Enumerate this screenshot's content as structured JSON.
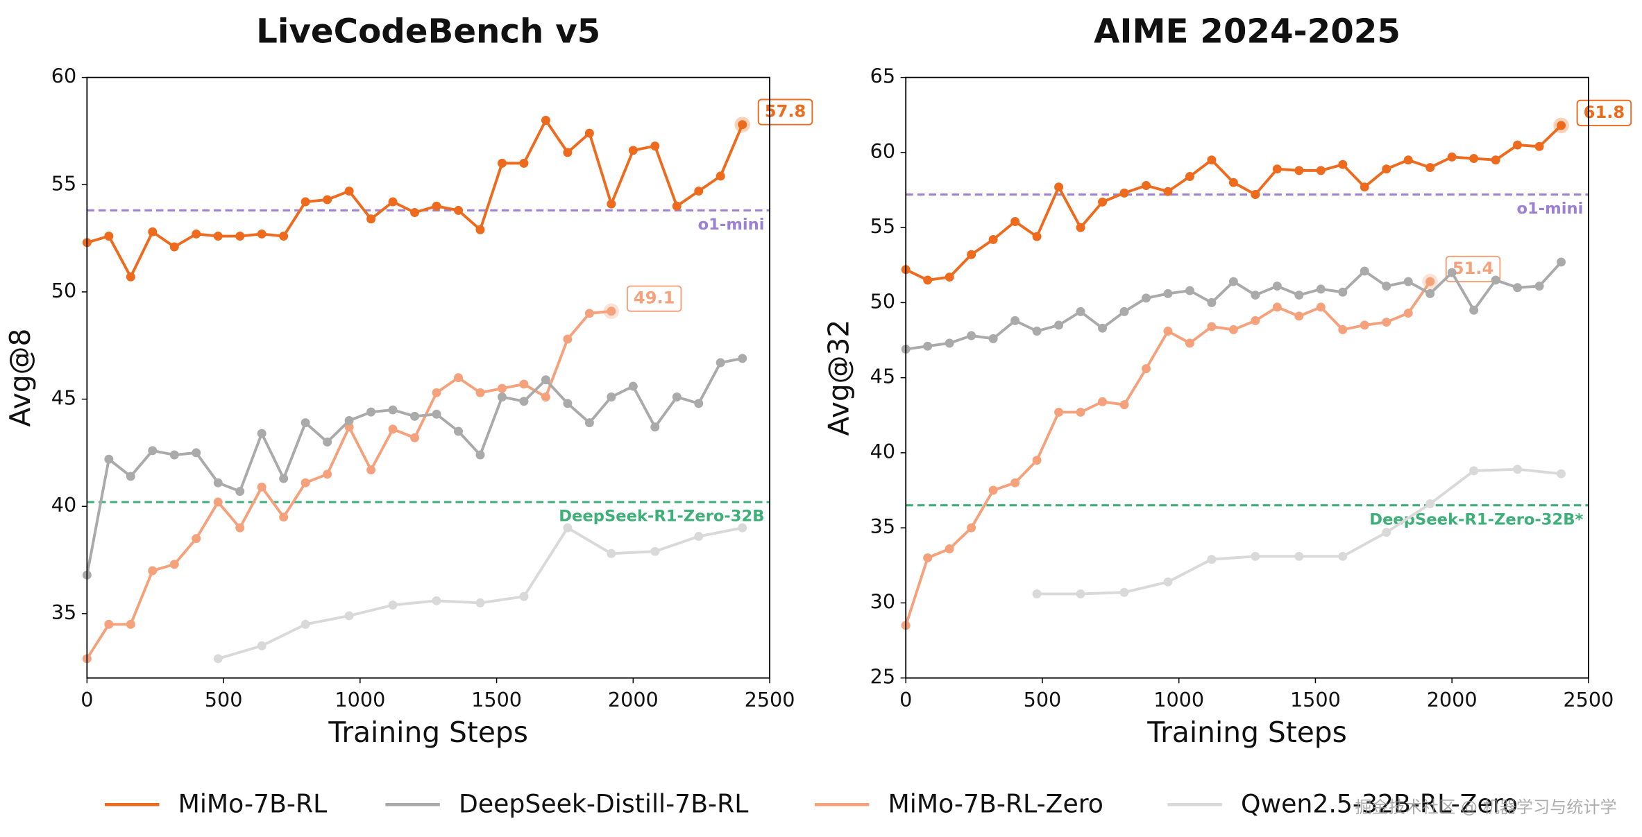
{
  "chart_data": [
    {
      "type": "line",
      "title": "LiveCodeBench v5",
      "xlabel": "Training Steps",
      "ylabel": "Avg@8",
      "xlim": [
        0,
        2500
      ],
      "xticks": [
        0,
        500,
        1000,
        1500,
        2000,
        2500
      ],
      "ylim": [
        32,
        60
      ],
      "yticks": [
        35,
        40,
        45,
        50,
        55,
        60
      ],
      "grid": false,
      "legend": "bottom",
      "series": [
        {
          "name": "MiMo-7B-RL",
          "color": "#ee6a1c",
          "end_label": true,
          "x": [
            0,
            80,
            160,
            240,
            320,
            400,
            480,
            560,
            640,
            720,
            800,
            880,
            960,
            1040,
            1120,
            1200,
            1280,
            1360,
            1440,
            1520,
            1600,
            1680,
            1760,
            1840,
            1920,
            2000,
            2080,
            2160,
            2240,
            2320,
            2400
          ],
          "values": [
            52.3,
            52.6,
            50.7,
            52.8,
            52.1,
            52.7,
            52.6,
            52.6,
            52.7,
            52.6,
            54.2,
            54.3,
            54.7,
            53.4,
            54.2,
            53.7,
            54.0,
            53.8,
            52.9,
            56.0,
            56.0,
            58.0,
            56.5,
            57.4,
            54.1,
            56.6,
            56.8,
            54.0,
            54.7,
            55.4,
            57.8
          ]
        },
        {
          "name": "DeepSeek-Distill-7B-RL",
          "color": "#aaaaaa",
          "x": [
            0,
            80,
            160,
            240,
            320,
            400,
            480,
            560,
            640,
            720,
            800,
            880,
            960,
            1040,
            1120,
            1200,
            1280,
            1360,
            1440,
            1520,
            1600,
            1680,
            1760,
            1840,
            1920,
            2000,
            2080,
            2160,
            2240,
            2320,
            2400
          ],
          "values": [
            36.8,
            42.2,
            41.4,
            42.6,
            42.4,
            42.5,
            41.1,
            40.7,
            43.4,
            41.3,
            43.9,
            43.0,
            44.0,
            44.4,
            44.5,
            44.2,
            44.3,
            43.5,
            42.4,
            45.1,
            44.9,
            45.9,
            44.8,
            43.9,
            45.1,
            45.6,
            43.7,
            45.1,
            44.8,
            46.7,
            46.9
          ]
        },
        {
          "name": "MiMo-7B-RL-Zero",
          "color": "#f5a27c",
          "end_label": true,
          "x": [
            0,
            80,
            160,
            240,
            320,
            400,
            480,
            560,
            640,
            720,
            800,
            880,
            960,
            1040,
            1120,
            1200,
            1280,
            1360,
            1440,
            1520,
            1600,
            1680,
            1760,
            1840,
            1920
          ],
          "values": [
            32.9,
            34.5,
            34.5,
            37.0,
            37.3,
            38.5,
            40.2,
            39.0,
            40.9,
            39.5,
            41.1,
            41.5,
            43.7,
            41.7,
            43.6,
            43.2,
            45.3,
            46.0,
            45.3,
            45.5,
            45.7,
            45.1,
            47.8,
            49.0,
            49.1
          ]
        },
        {
          "name": "Qwen2.5-32B-RL-Zero",
          "color": "#d9d9d9",
          "x": [
            480,
            640,
            800,
            960,
            1120,
            1280,
            1440,
            1600,
            1760,
            1920,
            2080,
            2240,
            2400
          ],
          "values": [
            32.9,
            33.5,
            34.5,
            34.9,
            35.4,
            35.6,
            35.5,
            35.8,
            39.0,
            37.8,
            37.9,
            38.6,
            39.0
          ]
        }
      ],
      "reference_lines": [
        {
          "label": "o1-mini",
          "value": 53.8,
          "color": "#9b80d6"
        },
        {
          "label": "DeepSeek-R1-Zero-32B",
          "value": 40.2,
          "color": "#3daf78"
        }
      ]
    },
    {
      "type": "line",
      "title": "AIME 2024-2025",
      "xlabel": "Training Steps",
      "ylabel": "Avg@32",
      "xlim": [
        0,
        2500
      ],
      "xticks": [
        0,
        500,
        1000,
        1500,
        2000,
        2500
      ],
      "ylim": [
        25,
        65
      ],
      "yticks": [
        25,
        30,
        35,
        40,
        45,
        50,
        55,
        60,
        65
      ],
      "grid": false,
      "series": [
        {
          "name": "MiMo-7B-RL",
          "color": "#ee6a1c",
          "end_label": true,
          "x": [
            0,
            80,
            160,
            240,
            320,
            400,
            480,
            560,
            640,
            720,
            800,
            880,
            960,
            1040,
            1120,
            1200,
            1280,
            1360,
            1440,
            1520,
            1600,
            1680,
            1760,
            1840,
            1920,
            2000,
            2080,
            2160,
            2240,
            2320,
            2400
          ],
          "values": [
            52.2,
            51.5,
            51.7,
            53.2,
            54.2,
            55.4,
            54.4,
            57.7,
            55.0,
            56.7,
            57.3,
            57.8,
            57.4,
            58.4,
            59.5,
            58.0,
            57.2,
            58.9,
            58.8,
            58.8,
            59.2,
            57.7,
            58.9,
            59.5,
            59.0,
            59.7,
            59.6,
            59.5,
            60.5,
            60.4,
            61.8
          ]
        },
        {
          "name": "DeepSeek-Distill-7B-RL",
          "color": "#aaaaaa",
          "x": [
            0,
            80,
            160,
            240,
            320,
            400,
            480,
            560,
            640,
            720,
            800,
            880,
            960,
            1040,
            1120,
            1200,
            1280,
            1360,
            1440,
            1520,
            1600,
            1680,
            1760,
            1840,
            1920,
            2000,
            2080,
            2160,
            2240,
            2320,
            2400
          ],
          "values": [
            46.9,
            47.1,
            47.3,
            47.8,
            47.6,
            48.8,
            48.1,
            48.5,
            49.4,
            48.3,
            49.4,
            50.3,
            50.6,
            50.8,
            50.0,
            51.4,
            50.5,
            51.1,
            50.5,
            50.9,
            50.7,
            52.1,
            51.1,
            51.4,
            50.6,
            52.0,
            49.5,
            51.5,
            51.0,
            51.1,
            52.7
          ]
        },
        {
          "name": "MiMo-7B-RL-Zero",
          "color": "#f5a27c",
          "end_label": true,
          "x": [
            0,
            80,
            160,
            240,
            320,
            400,
            480,
            560,
            640,
            720,
            800,
            880,
            960,
            1040,
            1120,
            1200,
            1280,
            1360,
            1440,
            1520,
            1600,
            1680,
            1760,
            1840,
            1920
          ],
          "values": [
            28.5,
            33.0,
            33.6,
            35.0,
            37.5,
            38.0,
            39.5,
            42.7,
            42.7,
            43.4,
            43.2,
            45.6,
            48.1,
            47.3,
            48.4,
            48.2,
            48.8,
            49.7,
            49.1,
            49.7,
            48.2,
            48.5,
            48.7,
            49.3,
            51.4
          ]
        },
        {
          "name": "Qwen2.5-32B-RL-Zero",
          "color": "#d9d9d9",
          "x": [
            480,
            640,
            800,
            960,
            1120,
            1280,
            1440,
            1600,
            1760,
            1920,
            2080,
            2240,
            2400
          ],
          "values": [
            30.6,
            30.6,
            30.7,
            31.4,
            32.9,
            33.1,
            33.1,
            33.1,
            34.7,
            36.6,
            38.8,
            38.9,
            38.6
          ]
        }
      ],
      "reference_lines": [
        {
          "label": "o1-mini",
          "value": 57.2,
          "color": "#9b80d6"
        },
        {
          "label": "DeepSeek-R1-Zero-32B*",
          "value": 36.5,
          "color": "#3daf78"
        }
      ]
    }
  ],
  "watermark": "掘金技术社区 @ 机器学习与统计学"
}
